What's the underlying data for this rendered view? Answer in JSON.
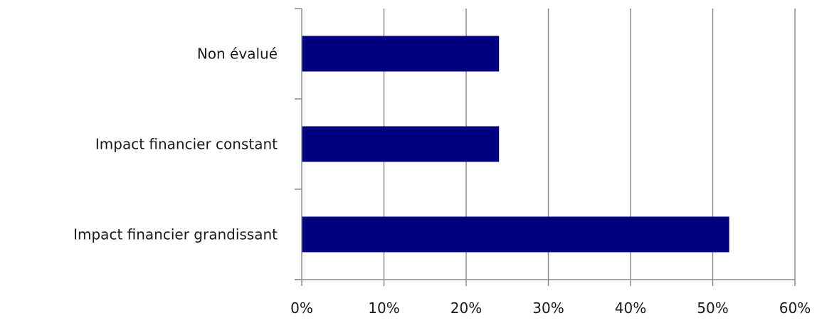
{
  "chart_data": {
    "type": "bar",
    "orientation": "horizontal",
    "categories": [
      "Non évalué",
      "Impact financier constant",
      "Impact financier grandissant"
    ],
    "values": [
      24,
      24,
      52
    ],
    "value_unit": "%",
    "xlim": [
      0,
      60
    ],
    "xticks": [
      0,
      10,
      20,
      30,
      40,
      50,
      60
    ],
    "xtick_labels": [
      "0%",
      "10%",
      "20%",
      "30%",
      "40%",
      "50%",
      "60%"
    ],
    "title": "",
    "xlabel": "",
    "ylabel": "",
    "grid": "vertical",
    "legend": "none",
    "colors": {
      "bar": "#000080",
      "grid": "#8c8c8c",
      "axis": "#8c8c8c"
    }
  }
}
